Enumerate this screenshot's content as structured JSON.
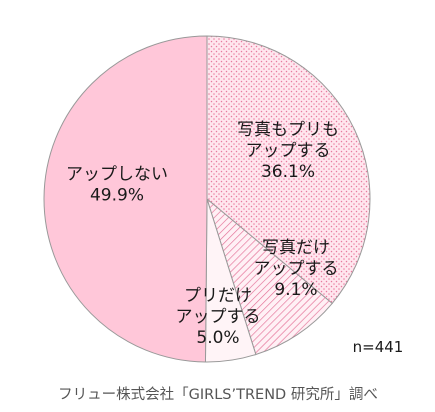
{
  "chart_data": {
    "type": "pie",
    "slices": [
      {
        "label_lines": [
          "写真もプリも",
          "アップする"
        ],
        "value": 36.1,
        "value_text": "36.1%",
        "fill_style": "dotted",
        "color": "#f9c7d6"
      },
      {
        "label_lines": [
          "写真だけ",
          "アップする"
        ],
        "value": 9.1,
        "value_text": "9.1%",
        "fill_style": "diagonal-hatch",
        "color": "#f3a9c0"
      },
      {
        "label_lines": [
          "プリだけ",
          "アップする"
        ],
        "value": 5.0,
        "value_text": "5.0%",
        "fill_style": "solid",
        "color": "#fff4f7"
      },
      {
        "label_lines": [
          "アップしない"
        ],
        "value": 49.9,
        "value_text": "49.9%",
        "fill_style": "solid",
        "color": "#ffc7d9"
      }
    ],
    "start_angle_deg": 0,
    "direction": "clockwise",
    "outline_color": "#999999",
    "sample_size_text": "n=441",
    "source_text": "フリュー株式会社「GIRLS’TREND 研究所」調べ"
  }
}
